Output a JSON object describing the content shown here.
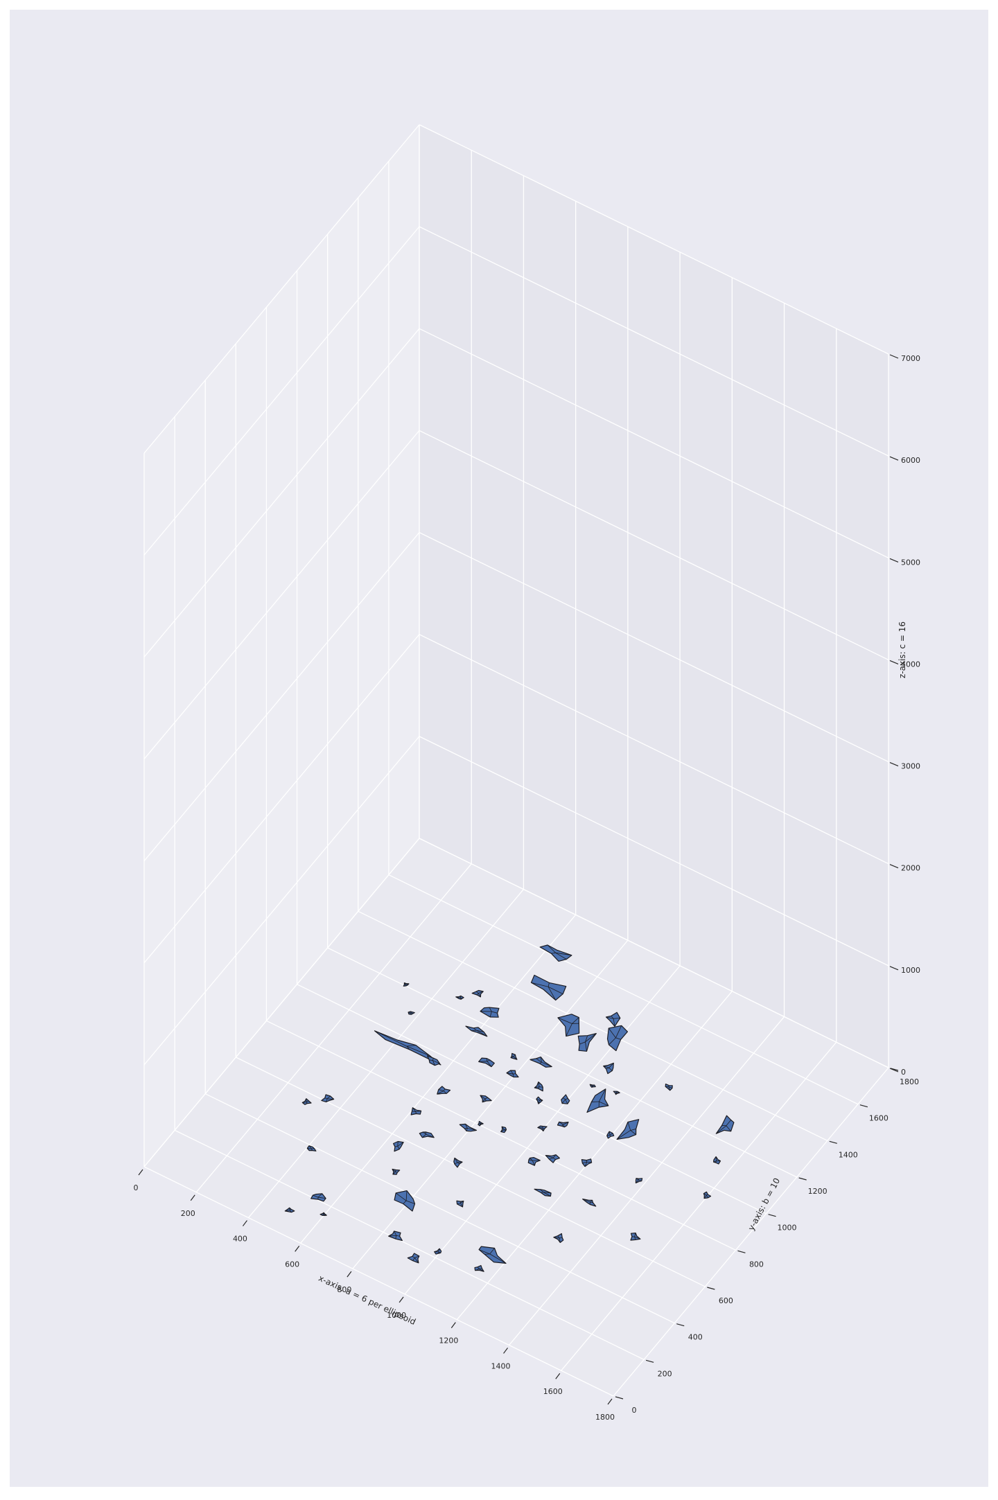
{
  "chart_data": {
    "type": "scatter3d",
    "title": "",
    "xlabel": "x-axis: a = 6 per ellipsoid",
    "ylabel": "y-axis: b = 10",
    "zlabel": "z-axis: c = 16",
    "xlim": [
      0,
      1800
    ],
    "ylim": [
      0,
      1800
    ],
    "zlim": [
      0,
      7000
    ],
    "xticks": [
      "0",
      "200",
      "400",
      "600",
      "800",
      "1000",
      "1200",
      "1400",
      "1600",
      "1800"
    ],
    "yticks": [
      "0",
      "200",
      "400",
      "600",
      "800",
      "1000",
      "1200",
      "1400",
      "1600",
      "1800"
    ],
    "zticks": [
      "0",
      "1000",
      "2000",
      "3000",
      "4000",
      "5000",
      "6000",
      "7000"
    ],
    "grid": true,
    "legend": "none",
    "colors": {
      "figure_bg": "#eaeaf2",
      "pane_bg": "#e6e6ee",
      "grid": "#ffffff",
      "face": "#4c72b0",
      "edge": "#1c1c22"
    },
    "series": [
      {
        "points": [
          [
            700,
            1450,
            150,
            90,
            45
          ],
          [
            640,
            1600,
            120,
            60,
            35
          ],
          [
            850,
            1350,
            100,
            140,
            50
          ],
          [
            930,
            1300,
            60,
            120,
            60
          ],
          [
            1000,
            1380,
            80,
            130,
            45
          ],
          [
            950,
            1450,
            70,
            60,
            45
          ],
          [
            1050,
            1250,
            50,
            50,
            45
          ],
          [
            600,
            1250,
            90,
            50,
            35
          ],
          [
            520,
            1300,
            40,
            35,
            25
          ],
          [
            480,
            1250,
            30,
            20,
            20
          ],
          [
            600,
            1150,
            80,
            30,
            30
          ],
          [
            450,
            950,
            280,
            40,
            45
          ],
          [
            700,
            1050,
            60,
            50,
            30
          ],
          [
            850,
            1150,
            80,
            40,
            30
          ],
          [
            800,
            1050,
            40,
            40,
            30
          ],
          [
            760,
            1120,
            30,
            30,
            25
          ],
          [
            900,
            1050,
            40,
            40,
            30
          ],
          [
            1000,
            1050,
            40,
            40,
            30
          ],
          [
            1100,
            1100,
            80,
            120,
            45
          ],
          [
            1250,
            1050,
            80,
            120,
            40
          ],
          [
            350,
            600,
            40,
            40,
            30
          ],
          [
            300,
            550,
            30,
            30,
            25
          ],
          [
            700,
            650,
            60,
            40,
            30
          ],
          [
            620,
            720,
            40,
            40,
            25
          ],
          [
            650,
            850,
            40,
            50,
            35
          ],
          [
            800,
            750,
            60,
            40,
            35
          ],
          [
            780,
            900,
            40,
            40,
            30
          ],
          [
            550,
            950,
            50,
            40,
            30
          ],
          [
            850,
            600,
            40,
            40,
            30
          ],
          [
            930,
            1000,
            30,
            30,
            25
          ],
          [
            650,
            550,
            40,
            50,
            30
          ],
          [
            700,
            450,
            30,
            30,
            20
          ],
          [
            1050,
            750,
            60,
            40,
            30
          ],
          [
            1100,
            800,
            50,
            40,
            30
          ],
          [
            1200,
            850,
            40,
            40,
            25
          ],
          [
            1050,
            950,
            40,
            40,
            25
          ],
          [
            1000,
            900,
            30,
            30,
            20
          ],
          [
            1150,
            650,
            60,
            30,
            25
          ],
          [
            1300,
            700,
            50,
            30,
            25
          ],
          [
            950,
            450,
            30,
            40,
            25
          ],
          [
            800,
            350,
            100,
            80,
            40
          ],
          [
            1300,
            500,
            40,
            40,
            30
          ],
          [
            1150,
            300,
            150,
            60,
            45
          ],
          [
            850,
            200,
            60,
            40,
            30
          ],
          [
            950,
            150,
            50,
            40,
            25
          ],
          [
            1000,
            220,
            30,
            30,
            20
          ],
          [
            1150,
            230,
            40,
            30,
            25
          ],
          [
            550,
            200,
            60,
            40,
            30
          ],
          [
            500,
            100,
            30,
            30,
            20
          ],
          [
            600,
            150,
            20,
            20,
            15
          ],
          [
            420,
            380,
            30,
            30,
            20
          ],
          [
            1500,
            1250,
            50,
            120,
            40
          ],
          [
            1550,
            1100,
            30,
            40,
            25
          ],
          [
            1600,
            950,
            30,
            30,
            20
          ],
          [
            1500,
            650,
            40,
            40,
            25
          ],
          [
            900,
            820,
            30,
            30,
            20
          ],
          [
            820,
            800,
            20,
            20,
            15
          ],
          [
            1200,
            1000,
            30,
            30,
            20
          ],
          [
            1380,
            880,
            30,
            30,
            20
          ],
          [
            300,
            1200,
            20,
            20,
            15
          ],
          [
            380,
            1100,
            20,
            20,
            15
          ],
          [
            1120,
            1180,
            20,
            20,
            15
          ],
          [
            1040,
            1160,
            20,
            20,
            15
          ],
          [
            1250,
            1300,
            30,
            30,
            20
          ]
        ]
      }
    ]
  }
}
